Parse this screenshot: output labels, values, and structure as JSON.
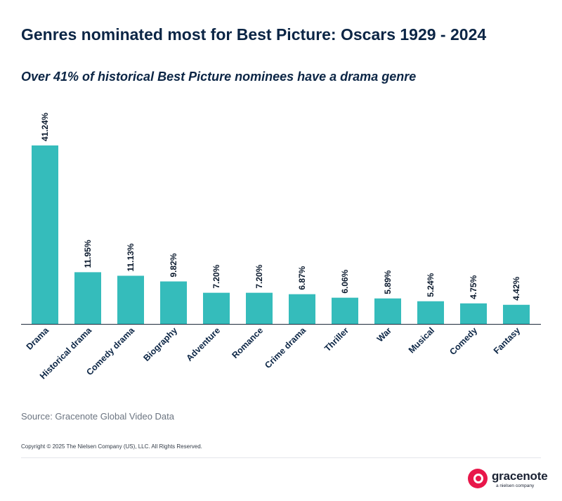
{
  "header": {
    "title": "Genres nominated most for Best Picture: Oscars 1929 - 2024",
    "subtitle": "Over 41% of historical Best Picture nominees have a drama genre"
  },
  "chart_data": {
    "type": "bar",
    "categories": [
      "Drama",
      "Historical drama",
      "Comedy drama",
      "Biography",
      "Adventure",
      "Romance",
      "Crime drama",
      "Thriller",
      "War",
      "Musical",
      "Comedy",
      "Fantasy"
    ],
    "values": [
      41.24,
      11.95,
      11.13,
      9.82,
      7.2,
      7.2,
      6.87,
      6.06,
      5.89,
      5.24,
      4.75,
      4.42
    ],
    "data_labels": [
      "41.24%",
      "11.95%",
      "11.13%",
      "9.82%",
      "7.20%",
      "7.20%",
      "6.87%",
      "6.06%",
      "5.89%",
      "5.24%",
      "4.75%",
      "4.42%"
    ],
    "value_unit": "%",
    "bar_color": "#35bcbb",
    "ylim": [
      0,
      41.24
    ],
    "grid": false,
    "legend": "none"
  },
  "footer": {
    "source": "Source: Gracenote Global Video Data",
    "copyright": "Copyright © 2025 The Nielsen Company (US), LLC. All Rights Reserved.",
    "logo_word": "gracenote",
    "logo_tag": "a nielsen company",
    "logo_color": "#e8174a"
  }
}
